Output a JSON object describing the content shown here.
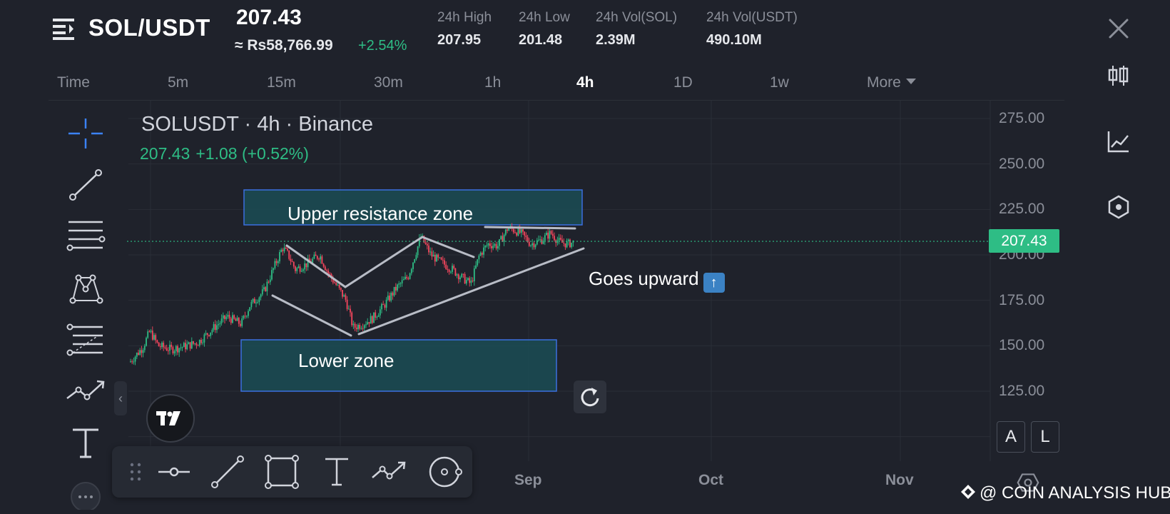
{
  "header": {
    "pair": "SOL/USDT",
    "last_price": "207.43",
    "inr_price": "≈ Rs58,766.99",
    "change_pct": "+2.54%",
    "stats": [
      {
        "label": "24h High",
        "value": "207.95"
      },
      {
        "label": "24h Low",
        "value": "201.48"
      },
      {
        "label": "24h Vol(SOL)",
        "value": "2.39M"
      },
      {
        "label": "24h Vol(USDT)",
        "value": "490.10M"
      }
    ]
  },
  "intervals": {
    "items": [
      "Time",
      "5m",
      "15m",
      "30m",
      "1h",
      "4h",
      "1D",
      "1w",
      "More"
    ],
    "active": "4h"
  },
  "chart": {
    "title": "SOLUSDT · 4h · Binance",
    "ohlc_price": "207.43",
    "ohlc_change": "+1.08 (+0.52%)",
    "y_ticks": [
      "275.00",
      "250.00",
      "225.00",
      "200.00",
      "175.00",
      "150.00",
      "125.00"
    ],
    "x_ticks": [
      "Sep",
      "Oct",
      "Nov"
    ],
    "current_price_badge": "207.43",
    "upper_zone_label": "Upper resistance zone",
    "lower_zone_label": "Lower zone",
    "annotation": "Goes upward",
    "annotation_emoji": "⬆️"
  },
  "axis_buttons": {
    "auto": "A",
    "log": "L"
  },
  "watermark": "@ COIN ANALYSIS HUB",
  "colors": {
    "background": "#1f222b",
    "up": "#2ebd85",
    "down": "#f6465d",
    "zone_border": "#3b6fe0",
    "zone_fill": "#1b4c55",
    "accent_blue": "#3b82f6"
  },
  "icons": {
    "header": [
      "menu-icon",
      "close-icon"
    ],
    "right_panel": [
      "candlestick-icon",
      "indicator-chart-icon",
      "layers-icon",
      "settings-hex-icon"
    ],
    "left_toolbar": [
      "crosshair-icon",
      "trend-line-icon",
      "horizontal-lines-icon",
      "pattern-icon",
      "fib-icon",
      "path-icon",
      "text-icon"
    ],
    "bottom_toolbar": [
      "drag-handle-icon",
      "horizontal-ray-icon",
      "line-icon",
      "rectangle-icon",
      "text-icon",
      "path-icon",
      "circle-icon"
    ]
  }
}
